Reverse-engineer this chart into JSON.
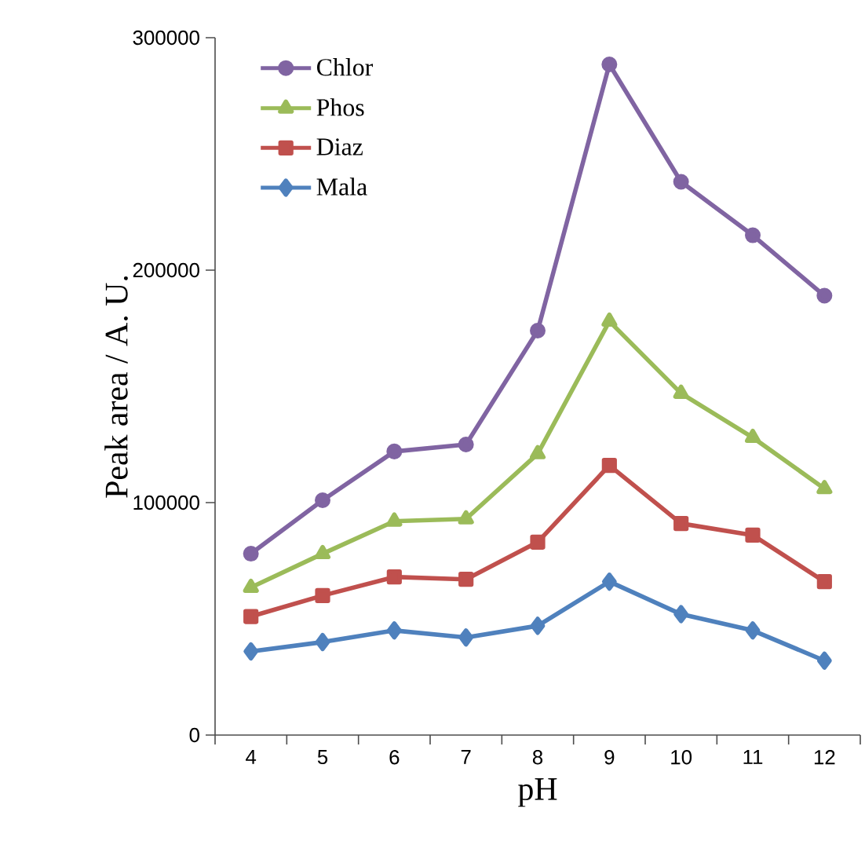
{
  "chart_data": {
    "type": "line",
    "xlabel": "pH",
    "ylabel": "Peak area / A. U.",
    "categories": [
      "4",
      "5",
      "6",
      "7",
      "8",
      "9",
      "10",
      "11",
      "12"
    ],
    "ylim": [
      0,
      300000
    ],
    "yticks": [
      0,
      100000,
      200000,
      300000
    ],
    "grid": false,
    "legend": "top left",
    "line_style": "solid",
    "series": [
      {
        "name": "Chlor",
        "color": "#8064a2",
        "marker": "circle",
        "values": [
          78000,
          101000,
          122000,
          125000,
          174000,
          288500,
          238000,
          215000,
          189000
        ]
      },
      {
        "name": "Phos",
        "color": "#9bbb59",
        "marker": "triangle",
        "values": [
          63500,
          78000,
          92000,
          93000,
          121000,
          178000,
          147000,
          128000,
          106000
        ]
      },
      {
        "name": "Diaz",
        "color": "#c0504d",
        "marker": "square",
        "values": [
          51000,
          60000,
          68000,
          67000,
          83000,
          116000,
          91000,
          86000,
          66000
        ]
      },
      {
        "name": "Mala",
        "color": "#4f81bd",
        "marker": "diamond",
        "values": [
          36000,
          40000,
          45000,
          42000,
          47000,
          66000,
          52000,
          45000,
          32000
        ]
      }
    ]
  }
}
